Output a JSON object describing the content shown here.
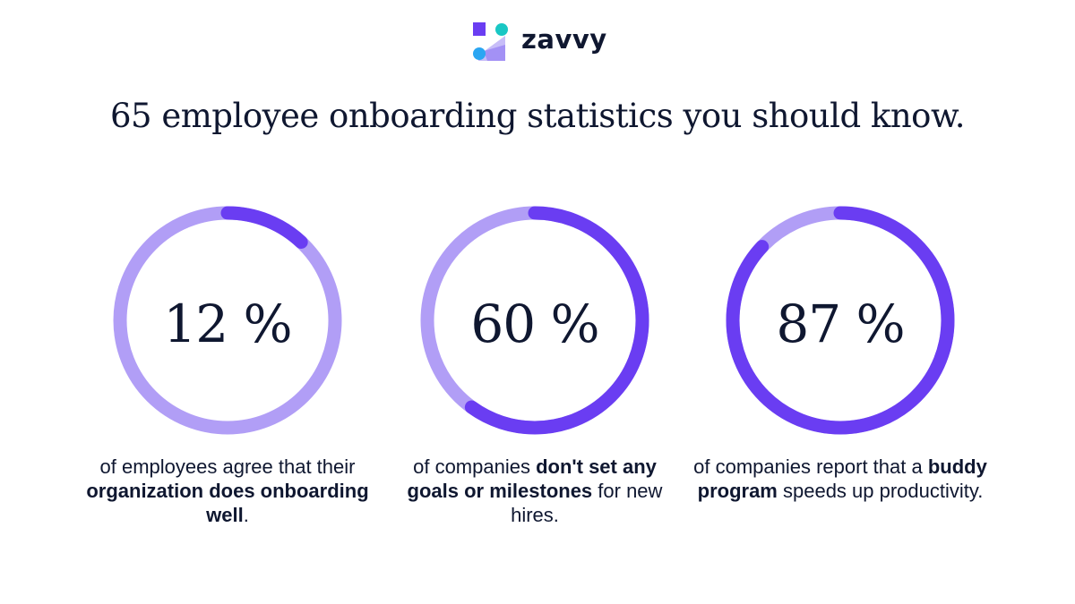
{
  "brand": {
    "name": "zavvy"
  },
  "headline": "65 employee onboarding statistics you should know.",
  "colors": {
    "track": "#b19ef6",
    "progress": "#6a3df2",
    "text": "#0f1730"
  },
  "chart_data": {
    "type": "donut",
    "items": [
      {
        "value": 12,
        "label": "12 %",
        "caption": {
          "pre": "of employees agree that their ",
          "bold": "organization does onboarding well",
          "post": "."
        }
      },
      {
        "value": 60,
        "label": "60 %",
        "caption": {
          "pre": "of companies ",
          "bold": "don't set any goals or milestones",
          "post": " for new hires."
        }
      },
      {
        "value": 87,
        "label": "87 %",
        "caption": {
          "pre": "of companies report that a ",
          "bold": "buddy program",
          "post": " speeds up productivity."
        }
      }
    ]
  }
}
